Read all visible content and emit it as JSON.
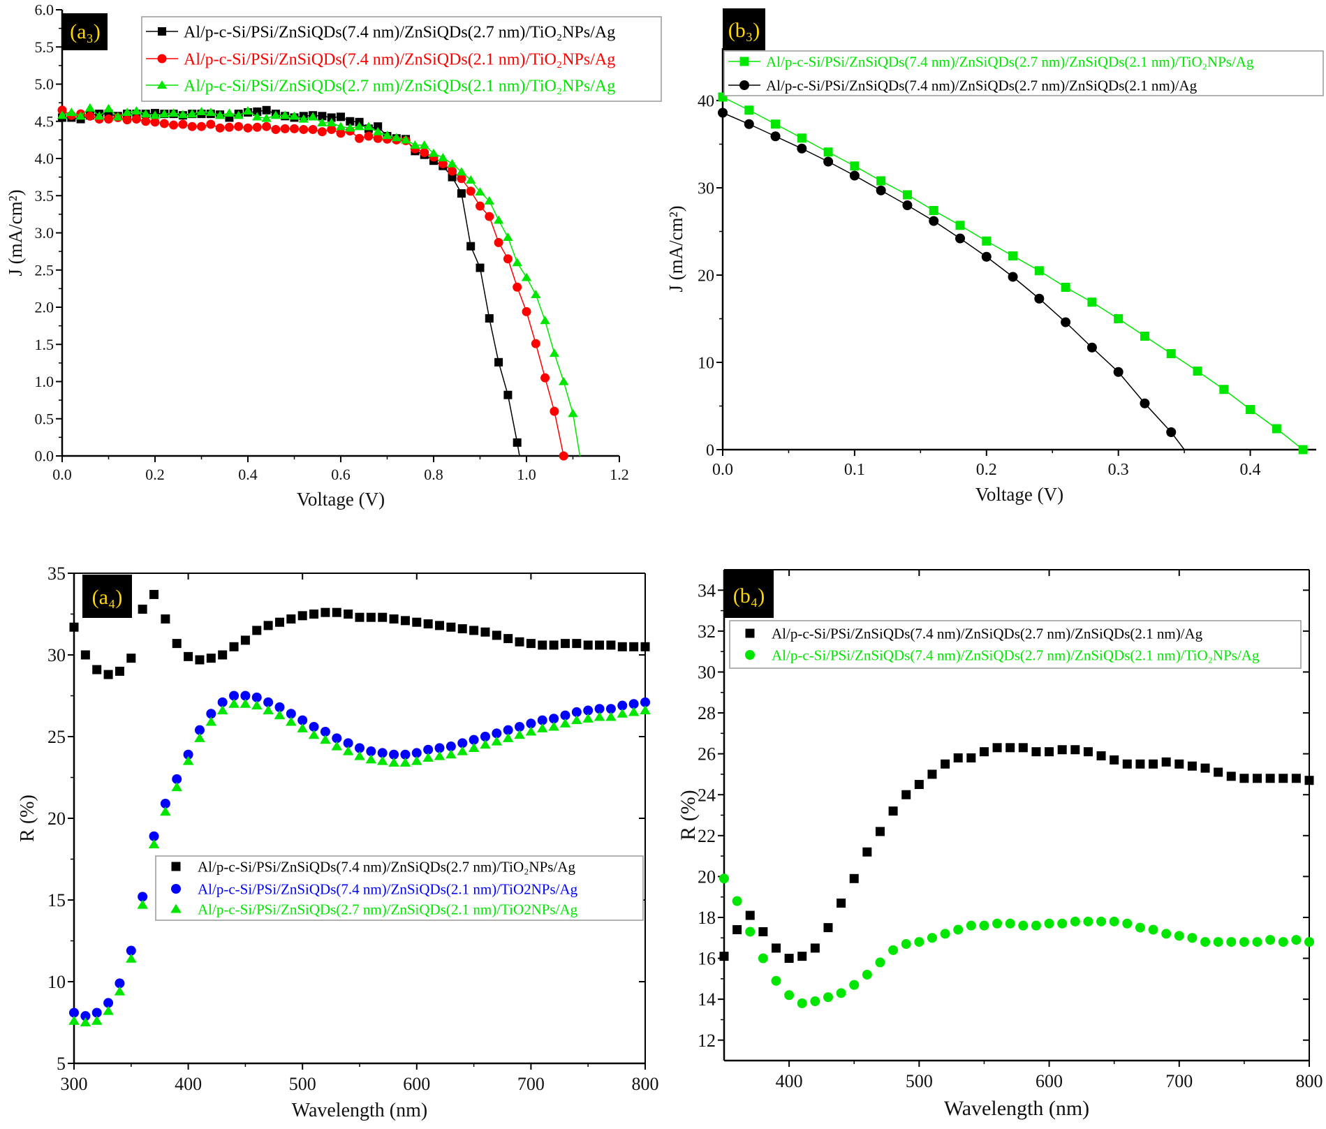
{
  "chart_data": [
    {
      "id": "a3",
      "type": "line",
      "panel_label": "(a₃)",
      "xlabel": "Voltage (V)",
      "ylabel": "J (mA/cm²)",
      "xlim": [
        0,
        1.2
      ],
      "ylim": [
        0,
        6.0
      ],
      "xticks": [
        0.0,
        0.2,
        0.4,
        0.6,
        0.8,
        1.0,
        1.2
      ],
      "yticks": [
        0.0,
        0.5,
        1.0,
        1.5,
        2.0,
        2.5,
        3.0,
        3.5,
        4.0,
        4.5,
        5.0,
        5.5,
        6.0
      ],
      "tick_decimals": 1,
      "frame": "axes",
      "legend_position": "top-right",
      "series": [
        {
          "name": "Al/p-c-Si/PSi/ZnSiQDs(7.4 nm)/ZnSiQDs(2.7 nm)/TiO₂NPs/Ag",
          "color": "#000000",
          "marker": "square",
          "line": true,
          "x_start": 0,
          "x_step": 0.02,
          "line_end": [
            0.985,
            0
          ],
          "values": [
            4.55,
            4.55,
            4.53,
            4.58,
            4.6,
            4.6,
            4.57,
            4.6,
            4.6,
            4.6,
            4.61,
            4.6,
            4.6,
            4.58,
            4.6,
            4.6,
            4.6,
            4.59,
            4.55,
            4.6,
            4.62,
            4.63,
            4.65,
            4.6,
            4.57,
            4.55,
            4.57,
            4.58,
            4.57,
            4.55,
            4.56,
            4.5,
            4.49,
            4.4,
            4.43,
            4.3,
            4.27,
            4.26,
            4.1,
            4.05,
            3.97,
            3.9,
            3.75,
            3.53,
            2.82,
            2.53,
            1.85,
            1.26,
            0.82,
            0.18
          ]
        },
        {
          "name": "Al/p-c-Si/PSi/ZnSiQDs(7.4 nm)/ZnSiQDs(2.1 nm)/TiO₂NPs/Ag",
          "color": "#ff0000",
          "marker": "circle",
          "line": true,
          "x_start": 0,
          "x_step": 0.02,
          "values": [
            4.65,
            4.58,
            4.6,
            4.57,
            4.53,
            4.53,
            4.55,
            4.52,
            4.53,
            4.5,
            4.49,
            4.47,
            4.45,
            4.46,
            4.43,
            4.43,
            4.46,
            4.41,
            4.42,
            4.43,
            4.41,
            4.42,
            4.43,
            4.39,
            4.4,
            4.4,
            4.39,
            4.39,
            4.36,
            4.39,
            4.34,
            4.37,
            4.27,
            4.3,
            4.27,
            4.26,
            4.25,
            4.24,
            4.13,
            4.08,
            4.02,
            3.93,
            3.83,
            3.73,
            3.56,
            3.36,
            3.22,
            2.87,
            2.65,
            2.27,
            1.94,
            1.51,
            1.05,
            0.6,
            0.0
          ]
        },
        {
          "name": "Al/p-c-Si/PSi/ZnSiQDs(2.7 nm)/ZnSiQDs(2.1 nm)/TiO₂NPs/Ag",
          "color": "#00e600",
          "marker": "triangle",
          "line": true,
          "x_start": 0,
          "x_step": 0.02,
          "line_end": [
            1.115,
            0
          ],
          "values": [
            4.58,
            4.62,
            4.57,
            4.68,
            4.57,
            4.67,
            4.56,
            4.62,
            4.64,
            4.6,
            4.58,
            4.6,
            4.61,
            4.59,
            4.6,
            4.63,
            4.62,
            4.58,
            4.61,
            4.58,
            4.64,
            4.56,
            4.54,
            4.58,
            4.58,
            4.57,
            4.53,
            4.56,
            4.48,
            4.48,
            4.43,
            4.41,
            4.43,
            4.43,
            4.36,
            4.31,
            4.28,
            4.25,
            4.18,
            4.18,
            4.07,
            4.01,
            3.93,
            3.82,
            3.71,
            3.55,
            3.43,
            3.17,
            2.94,
            2.6,
            2.4,
            2.17,
            1.82,
            1.38,
            1.0,
            0.57
          ]
        }
      ]
    },
    {
      "id": "b3",
      "type": "line",
      "panel_label": "(b₃)",
      "xlabel": "Voltage (V)",
      "ylabel": "J (mA/cm²)",
      "xlim": [
        0,
        0.45
      ],
      "ylim": [
        0,
        46
      ],
      "xticks": [
        0.0,
        0.1,
        0.2,
        0.3,
        0.4
      ],
      "yticks": [
        0,
        10,
        20,
        30,
        40
      ],
      "tick_decimals_x": 1,
      "frame": "axes",
      "legend_position": "top",
      "series": [
        {
          "name": "Al/p-c-Si/PSi/ZnSiQDs(7.4 nm)/ZnSiQDs(2.7 nm)/ZnSiQDs(2.1 nm)/TiO₂NPs/Ag",
          "color": "#00e600",
          "marker": "square",
          "line": true,
          "x_start": 0,
          "x_step": 0.02,
          "values": [
            40.4,
            38.9,
            37.3,
            35.7,
            34.1,
            32.5,
            30.8,
            29.2,
            27.4,
            25.7,
            23.9,
            22.2,
            20.5,
            18.6,
            16.9,
            15.0,
            13.0,
            11.0,
            9.0,
            6.9,
            4.6,
            2.4,
            0.0
          ]
        },
        {
          "name": "Al/p-c-Si/PSi/ZnSiQDs(7.4 nm)/ZnSiQDs(2.7 nm)/ZnSiQDs(2.1 nm)/Ag",
          "color": "#000000",
          "marker": "circle",
          "line": true,
          "x_start": 0,
          "x_step": 0.02,
          "line_end": [
            0.35,
            0
          ],
          "values": [
            38.6,
            37.3,
            35.9,
            34.5,
            33.0,
            31.4,
            29.7,
            28.0,
            26.2,
            24.2,
            22.1,
            19.8,
            17.3,
            14.6,
            11.7,
            8.9,
            5.3,
            2.0
          ]
        }
      ]
    },
    {
      "id": "a4",
      "type": "scatter",
      "panel_label": "(a₄)",
      "xlabel": "Wavelength (nm)",
      "ylabel": "R (%)",
      "xlim": [
        300,
        800
      ],
      "ylim": [
        5,
        35
      ],
      "xticks": [
        300,
        400,
        500,
        600,
        700,
        800
      ],
      "yticks": [
        5,
        10,
        15,
        20,
        25,
        30,
        35
      ],
      "frame": "box",
      "legend_position": "center-right",
      "series": [
        {
          "name": "Al/p-c-Si/PSi/ZnSiQDs(7.4 nm)/ZnSiQDs(2.7 nm)/TiO₂NPs/Ag",
          "color": "#000000",
          "marker": "square",
          "line": false,
          "x_start": 300,
          "x_step": 10,
          "values": [
            31.7,
            30.0,
            29.1,
            28.8,
            29.0,
            29.8,
            32.8,
            33.7,
            32.2,
            30.7,
            29.9,
            29.7,
            29.8,
            30.0,
            30.5,
            30.9,
            31.5,
            31.8,
            32.0,
            32.2,
            32.4,
            32.5,
            32.6,
            32.6,
            32.5,
            32.3,
            32.3,
            32.3,
            32.2,
            32.1,
            32.0,
            31.9,
            31.8,
            31.7,
            31.6,
            31.5,
            31.4,
            31.2,
            31.0,
            30.8,
            30.7,
            30.6,
            30.6,
            30.7,
            30.7,
            30.6,
            30.6,
            30.6,
            30.5,
            30.5,
            30.5
          ]
        },
        {
          "name": "Al/p-c-Si/PSi/ZnSiQDs(7.4 nm)/ZnSiQDs(2.1 nm)/TiO2NPs/Ag",
          "color": "#0000ff",
          "marker": "circle",
          "line": false,
          "x_start": 300,
          "x_step": 10,
          "values": [
            8.1,
            7.9,
            8.1,
            8.7,
            9.9,
            11.9,
            15.2,
            18.9,
            20.9,
            22.4,
            23.9,
            25.4,
            26.4,
            27.1,
            27.5,
            27.5,
            27.4,
            27.1,
            26.8,
            26.4,
            26.0,
            25.6,
            25.3,
            24.9,
            24.6,
            24.3,
            24.1,
            24.0,
            23.9,
            23.9,
            24.0,
            24.2,
            24.3,
            24.4,
            24.6,
            24.8,
            25.0,
            25.2,
            25.4,
            25.6,
            25.8,
            26.0,
            26.1,
            26.3,
            26.5,
            26.6,
            26.7,
            26.7,
            26.9,
            27.0,
            27.1
          ]
        },
        {
          "name": "Al/p-c-Si/PSi/ZnSiQDs(2.7 nm)/ZnSiQDs(2.1 nm)/TiO2NPs/Ag",
          "color": "#00e600",
          "marker": "triangle",
          "line": false,
          "x_start": 300,
          "x_step": 10,
          "values": [
            7.6,
            7.5,
            7.6,
            8.2,
            9.4,
            11.4,
            14.7,
            18.4,
            20.4,
            21.9,
            23.5,
            24.9,
            25.9,
            26.6,
            27.0,
            27.0,
            26.9,
            26.6,
            26.3,
            25.9,
            25.5,
            25.1,
            24.8,
            24.4,
            24.1,
            23.8,
            23.6,
            23.5,
            23.4,
            23.4,
            23.5,
            23.7,
            23.8,
            23.9,
            24.1,
            24.3,
            24.5,
            24.7,
            24.9,
            25.1,
            25.3,
            25.5,
            25.6,
            25.8,
            26.0,
            26.1,
            26.2,
            26.2,
            26.4,
            26.5,
            26.6
          ]
        }
      ]
    },
    {
      "id": "b4",
      "type": "scatter",
      "panel_label": "(b₄)",
      "xlabel": "Wavelength (nm)",
      "ylabel": "R (%)",
      "xlim": [
        350,
        800
      ],
      "ylim": [
        11,
        35
      ],
      "xticks": [
        400,
        500,
        600,
        700,
        800
      ],
      "yticks": [
        12,
        14,
        16,
        18,
        20,
        22,
        24,
        26,
        28,
        30,
        32,
        34
      ],
      "frame": "box",
      "legend_position": "top",
      "series": [
        {
          "name": "Al/p-c-Si/PSi/ZnSiQDs(7.4 nm)/ZnSiQDs(2.7 nm)/ZnSiQDs(2.1 nm)/Ag",
          "color": "#000000",
          "marker": "square",
          "line": false,
          "x_start": 350,
          "x_step": 10,
          "values": [
            16.1,
            17.4,
            18.1,
            17.3,
            16.5,
            16.0,
            16.1,
            16.5,
            17.5,
            18.7,
            19.9,
            21.2,
            22.2,
            23.2,
            24.0,
            24.5,
            25.0,
            25.5,
            25.8,
            25.8,
            26.1,
            26.3,
            26.3,
            26.3,
            26.1,
            26.1,
            26.2,
            26.2,
            26.1,
            25.9,
            25.7,
            25.5,
            25.5,
            25.5,
            25.6,
            25.5,
            25.4,
            25.3,
            25.1,
            24.9,
            24.8,
            24.8,
            24.8,
            24.8,
            24.8,
            24.7
          ]
        },
        {
          "name": "Al/p-c-Si/PSi/ZnSiQDs(7.4 nm)/ZnSiQDs(2.7 nm)/ZnSiQDs(2.1 nm)/TiO₂NPs/Ag",
          "color": "#00e600",
          "marker": "circle",
          "line": false,
          "x_start": 350,
          "x_step": 10,
          "values": [
            19.9,
            18.8,
            17.3,
            16.0,
            14.9,
            14.2,
            13.8,
            13.9,
            14.1,
            14.3,
            14.7,
            15.2,
            15.8,
            16.4,
            16.7,
            16.8,
            17.0,
            17.2,
            17.4,
            17.6,
            17.6,
            17.7,
            17.7,
            17.6,
            17.6,
            17.7,
            17.7,
            17.8,
            17.8,
            17.8,
            17.8,
            17.7,
            17.5,
            17.4,
            17.2,
            17.1,
            17.0,
            16.8,
            16.8,
            16.8,
            16.8,
            16.8,
            16.9,
            16.8,
            16.9,
            16.8
          ]
        }
      ]
    }
  ]
}
